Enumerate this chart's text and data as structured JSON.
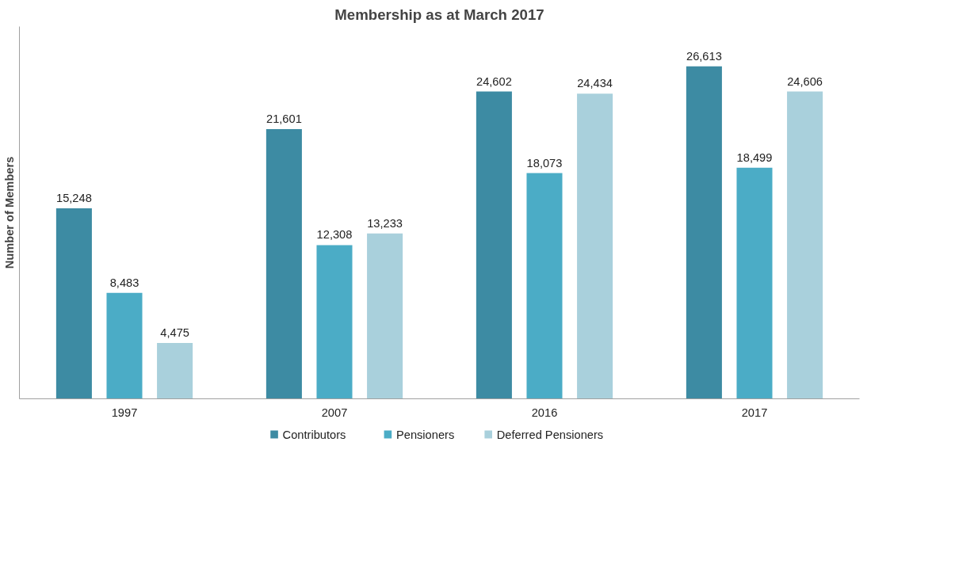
{
  "chart_data": {
    "type": "bar",
    "title": "Membership as at March 2017",
    "ylabel": "Number of Members",
    "categories": [
      "1997",
      "2007",
      "2016",
      "2017"
    ],
    "series": [
      {
        "name": "Contributors",
        "color": "#3d8ba3",
        "values": [
          15248,
          21601,
          24602,
          26613
        ],
        "value_labels": [
          "15,248",
          "21,601",
          "24,602",
          "26,613"
        ]
      },
      {
        "name": "Pensioners",
        "color": "#4bacc6",
        "values": [
          8483,
          12308,
          18073,
          18499
        ],
        "value_labels": [
          "8,483",
          "12,308",
          "18,073",
          "18,499"
        ]
      },
      {
        "name": "Deferred Pensioners",
        "color": "#a9d0dc",
        "values": [
          4475,
          13233,
          24434,
          24606
        ],
        "value_labels": [
          "4,475",
          "13,233",
          "24,434",
          "24,606"
        ]
      }
    ],
    "tick_labels": "x",
    "legend": "bottom"
  }
}
